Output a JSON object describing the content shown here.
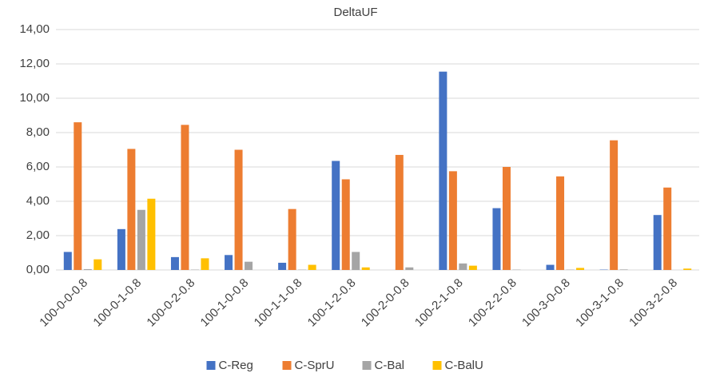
{
  "chart_data": {
    "type": "bar",
    "title": "DeltaUF",
    "categories": [
      "100-0-0-0.8",
      "100-0-1-0.8",
      "100-0-2-0.8",
      "100-1-0-0.8",
      "100-1-1-0.8",
      "100-1-2-0.8",
      "100-2-0-0.8",
      "100-2-1-0.8",
      "100-2-2-0.8",
      "100-3-0-0.8",
      "100-3-1-0.8",
      "100-3-2-0.8"
    ],
    "series": [
      {
        "name": "C-Reg",
        "color": "#4472c4",
        "values": [
          1.05,
          2.38,
          0.75,
          0.87,
          0.42,
          6.35,
          0,
          11.55,
          3.6,
          0.3,
          0.02,
          3.2
        ]
      },
      {
        "name": "C-SprU",
        "color": "#ed7d31",
        "values": [
          8.6,
          7.05,
          8.45,
          7.0,
          3.55,
          5.28,
          6.7,
          5.75,
          6.0,
          5.45,
          7.55,
          4.8
        ]
      },
      {
        "name": "C-Bal",
        "color": "#a5a5a5",
        "values": [
          0.05,
          3.5,
          0.02,
          0.48,
          0.02,
          1.05,
          0.15,
          0.38,
          0.02,
          0.02,
          0.03,
          0
        ]
      },
      {
        "name": "C-BalU",
        "color": "#ffc000",
        "values": [
          0.62,
          4.15,
          0.68,
          0,
          0.3,
          0.15,
          0,
          0.25,
          0,
          0.12,
          0,
          0.08
        ]
      }
    ],
    "ylim": [
      0,
      14
    ],
    "yticks": [
      {
        "value": 0,
        "label": "0,00"
      },
      {
        "value": 2,
        "label": "2,00"
      },
      {
        "value": 4,
        "label": "4,00"
      },
      {
        "value": 6,
        "label": "6,00"
      },
      {
        "value": 8,
        "label": "8,00"
      },
      {
        "value": 10,
        "label": "10,00"
      },
      {
        "value": 12,
        "label": "12,00"
      },
      {
        "value": 14,
        "label": "14,00"
      }
    ],
    "grid": true,
    "legend": "bottom"
  }
}
